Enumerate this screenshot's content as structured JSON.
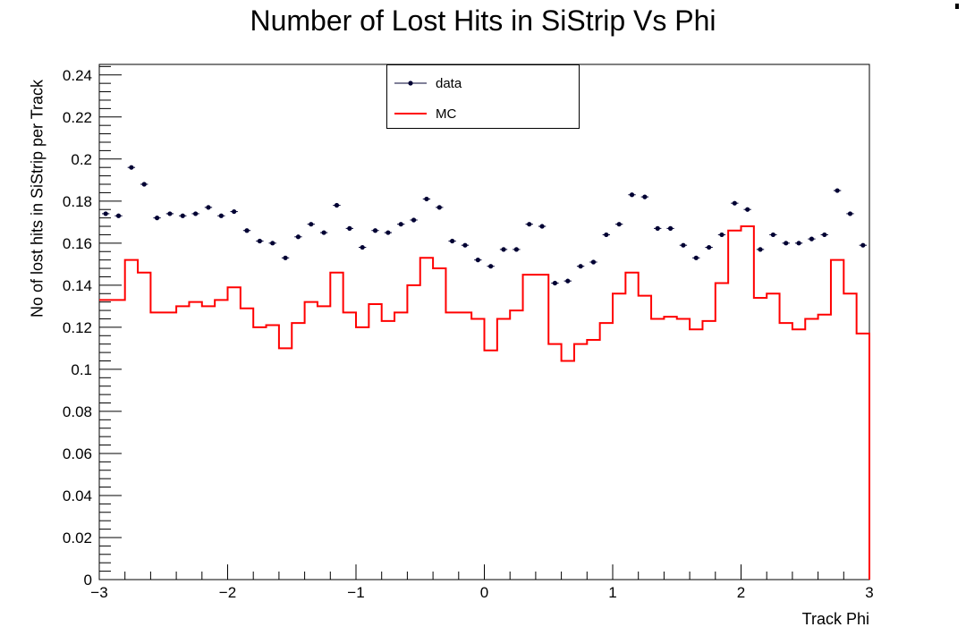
{
  "chart_data": {
    "type": "line",
    "title": "Number of Lost Hits in SiStrip Vs Phi",
    "xlabel": "Track Phi",
    "ylabel": "No of lost hits in SiStrip per Track",
    "xlim": [
      -3,
      3
    ],
    "ylim": [
      0,
      0.245
    ],
    "x_ticks": [
      -3,
      -2,
      -1,
      0,
      1,
      2,
      3
    ],
    "x_tick_labels": [
      "−3",
      "−2",
      "−1",
      "0",
      "1",
      "2",
      "3"
    ],
    "y_ticks": [
      0,
      0.02,
      0.04,
      0.06,
      0.08,
      0.1,
      0.12,
      0.14,
      0.16,
      0.18,
      0.2,
      0.22,
      0.24
    ],
    "y_tick_labels": [
      "0",
      "0.02",
      "0.04",
      "0.06",
      "0.08",
      "0.1",
      "0.12",
      "0.14",
      "0.16",
      "0.18",
      "0.2",
      "0.22",
      "0.24"
    ],
    "bin_width": 0.1,
    "legend": {
      "placement": "top-center"
    },
    "series": [
      {
        "name": "data",
        "style": "markers",
        "color": "#000033",
        "x": [
          -2.95,
          -2.85,
          -2.75,
          -2.65,
          -2.55,
          -2.45,
          -2.35,
          -2.25,
          -2.15,
          -2.05,
          -1.95,
          -1.85,
          -1.75,
          -1.65,
          -1.55,
          -1.45,
          -1.35,
          -1.25,
          -1.15,
          -1.05,
          -0.95,
          -0.85,
          -0.75,
          -0.65,
          -0.55,
          -0.45,
          -0.35,
          -0.25,
          -0.15,
          -0.05,
          0.05,
          0.15,
          0.25,
          0.35,
          0.45,
          0.55,
          0.65,
          0.75,
          0.85,
          0.95,
          1.05,
          1.15,
          1.25,
          1.35,
          1.45,
          1.55,
          1.65,
          1.75,
          1.85,
          1.95,
          2.05,
          2.15,
          2.25,
          2.35,
          2.45,
          2.55,
          2.65,
          2.75,
          2.85,
          2.95
        ],
        "values": [
          0.174,
          0.173,
          0.196,
          0.188,
          0.172,
          0.174,
          0.173,
          0.174,
          0.177,
          0.173,
          0.175,
          0.166,
          0.161,
          0.16,
          0.153,
          0.163,
          0.169,
          0.165,
          0.178,
          0.167,
          0.158,
          0.166,
          0.165,
          0.169,
          0.171,
          0.181,
          0.177,
          0.161,
          0.159,
          0.152,
          0.149,
          0.157,
          0.157,
          0.169,
          0.168,
          0.141,
          0.142,
          0.149,
          0.151,
          0.164,
          0.169,
          0.183,
          0.182,
          0.167,
          0.167,
          0.159,
          0.153,
          0.158,
          0.164,
          0.179,
          0.176,
          0.157,
          0.164,
          0.16,
          0.16,
          0.162,
          0.164,
          0.185,
          0.174,
          0.159
        ]
      },
      {
        "name": "MC",
        "style": "step",
        "color": "#ff0000",
        "x": [
          -2.95,
          -2.85,
          -2.75,
          -2.65,
          -2.55,
          -2.45,
          -2.35,
          -2.25,
          -2.15,
          -2.05,
          -1.95,
          -1.85,
          -1.75,
          -1.65,
          -1.55,
          -1.45,
          -1.35,
          -1.25,
          -1.15,
          -1.05,
          -0.95,
          -0.85,
          -0.75,
          -0.65,
          -0.55,
          -0.45,
          -0.35,
          -0.25,
          -0.15,
          -0.05,
          0.05,
          0.15,
          0.25,
          0.35,
          0.45,
          0.55,
          0.65,
          0.75,
          0.85,
          0.95,
          1.05,
          1.15,
          1.25,
          1.35,
          1.45,
          1.55,
          1.65,
          1.75,
          1.85,
          1.95,
          2.05,
          2.15,
          2.25,
          2.35,
          2.45,
          2.55,
          2.65,
          2.75,
          2.85,
          2.95
        ],
        "values": [
          0.133,
          0.133,
          0.152,
          0.146,
          0.127,
          0.127,
          0.13,
          0.132,
          0.13,
          0.133,
          0.139,
          0.129,
          0.12,
          0.121,
          0.11,
          0.122,
          0.132,
          0.13,
          0.146,
          0.127,
          0.12,
          0.131,
          0.123,
          0.127,
          0.14,
          0.153,
          0.148,
          0.127,
          0.127,
          0.124,
          0.109,
          0.124,
          0.128,
          0.145,
          0.145,
          0.112,
          0.104,
          0.112,
          0.114,
          0.122,
          0.136,
          0.146,
          0.135,
          0.124,
          0.125,
          0.124,
          0.119,
          0.123,
          0.141,
          0.166,
          0.168,
          0.134,
          0.136,
          0.122,
          0.119,
          0.124,
          0.126,
          0.152,
          0.136,
          0.117
        ]
      }
    ]
  }
}
